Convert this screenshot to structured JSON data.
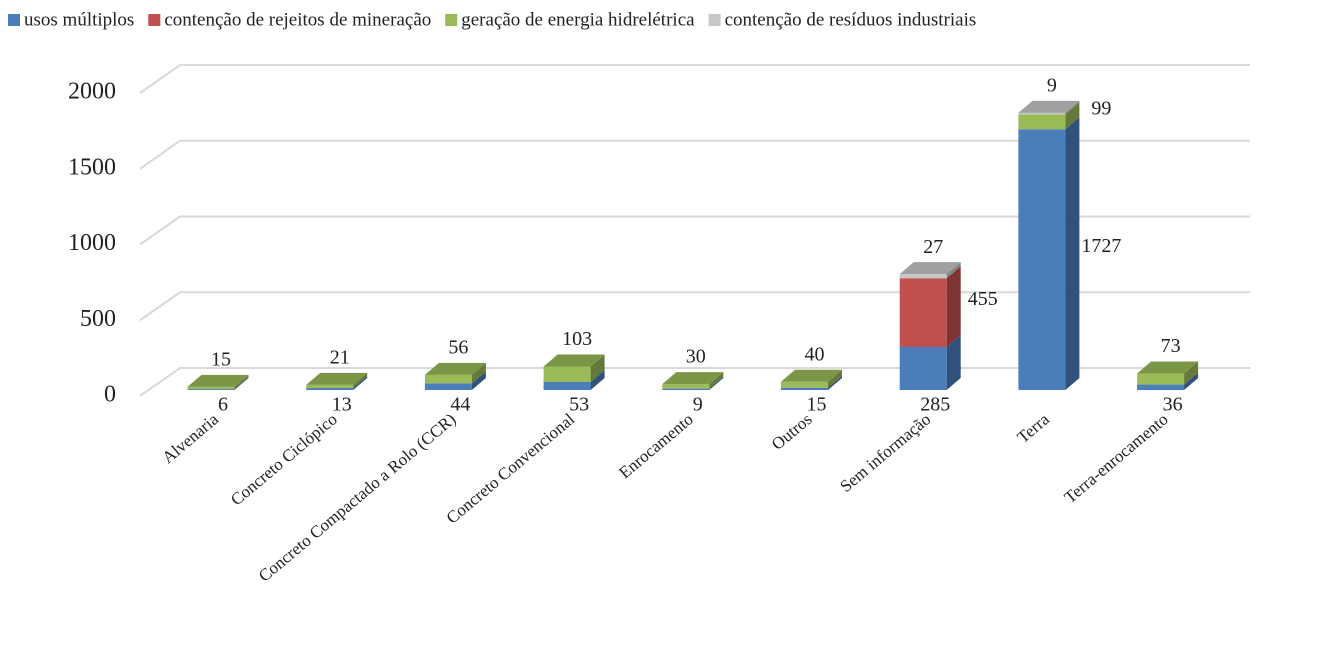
{
  "chart_data": {
    "type": "bar3d_stacked",
    "categories": [
      "Alvenaria",
      "Concreto Ciclópico",
      "Concreto Compactado a Rolo (CCR)",
      "Concreto Convencional",
      "Enrocamento",
      "Outros",
      "Sem informação",
      "Terra",
      "Terra-enrocamento"
    ],
    "series": [
      {
        "name": "usos múltiplos",
        "color": "#4a7ebb",
        "values": [
          6,
          13,
          44,
          53,
          9,
          15,
          285,
          1727,
          36
        ]
      },
      {
        "name": "contenção de rejeitos de mineração",
        "color": "#c0504d",
        "values": [
          null,
          null,
          null,
          null,
          null,
          null,
          455,
          null,
          null
        ]
      },
      {
        "name": "geração de energia hidrelétrica",
        "color": "#9bbb59",
        "values": [
          15,
          21,
          56,
          103,
          30,
          40,
          null,
          99,
          73
        ]
      },
      {
        "name": "contenção de resíduos industriais",
        "color": "#c8c8c8",
        "values": [
          null,
          null,
          null,
          null,
          null,
          null,
          27,
          9,
          null
        ]
      }
    ],
    "ylim": [
      0,
      2000
    ],
    "yticks": [
      0,
      500,
      1000,
      1500,
      2000
    ],
    "grid": true,
    "legend": "top"
  }
}
